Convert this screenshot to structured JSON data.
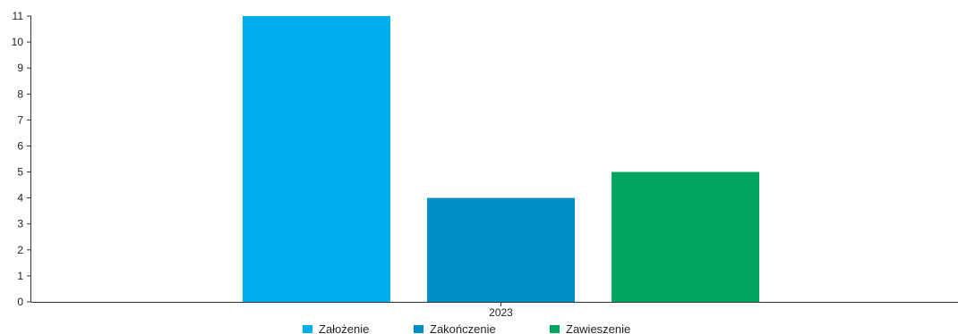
{
  "chart_data": {
    "type": "bar",
    "categories": [
      "2023"
    ],
    "series": [
      {
        "name": "Założenie",
        "values": [
          11
        ],
        "color": "#00adef"
      },
      {
        "name": "Zakończenie",
        "values": [
          4
        ],
        "color": "#008cc4"
      },
      {
        "name": "Zawieszenie",
        "values": [
          5
        ],
        "color": "#00a65f"
      }
    ],
    "ylim": [
      0,
      11
    ],
    "yticks": [
      "0",
      "1",
      "2",
      "3",
      "4",
      "5",
      "6",
      "7",
      "8",
      "9",
      "10",
      "11"
    ],
    "grid": false,
    "legend_position": "bottom",
    "title": "",
    "xlabel": "",
    "ylabel": ""
  }
}
